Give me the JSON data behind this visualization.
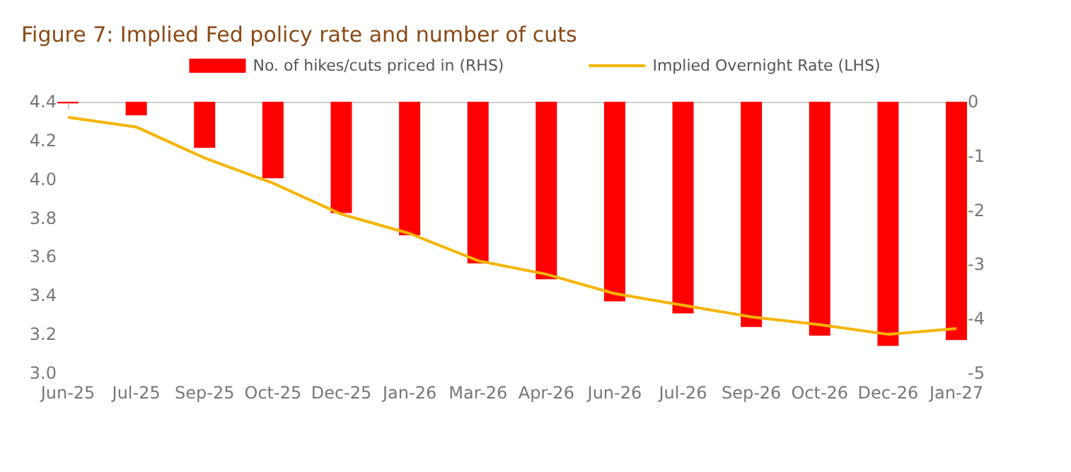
{
  "chart_data": {
    "type": "bar",
    "title": "Figure 7: Implied Fed policy rate and number of cuts",
    "categories": [
      "Jun-25",
      "Jul-25",
      "Sep-25",
      "Oct-25",
      "Dec-25",
      "Jan-26",
      "Mar-26",
      "Apr-26",
      "Jun-26",
      "Jul-26",
      "Sep-26",
      "Oct-26",
      "Dec-26",
      "Jan-27"
    ],
    "series": [
      {
        "name": "No. of hikes/cuts priced in (RHS)",
        "axis": "y2",
        "color": "#ff0000",
        "values": [
          -0.03,
          -0.25,
          -0.85,
          -1.41,
          -2.05,
          -2.46,
          -2.98,
          -3.27,
          -3.68,
          -3.9,
          -4.15,
          -4.31,
          -4.5,
          -4.39
        ]
      },
      {
        "name": "Implied Overnight Rate (LHS)",
        "type": "line",
        "color": "#f5b400",
        "marker": "none",
        "values": [
          4.32,
          4.27,
          4.11,
          3.98,
          3.82,
          3.72,
          3.58,
          3.51,
          3.41,
          3.35,
          3.29,
          3.25,
          3.2,
          3.23
        ]
      }
    ],
    "ylim": [
      3.0,
      4.4
    ],
    "yticks": [
      {
        "value": 3,
        "label": "3.0"
      },
      3.2,
      3.4,
      3.6,
      3.8,
      {
        "value": 4,
        "label": "4.0"
      },
      4.2,
      4.4
    ],
    "y2lim": [
      -5,
      0
    ],
    "y2ticks": [
      -5,
      -4,
      -3,
      -2,
      -1,
      0
    ],
    "grid": false,
    "legend": "top"
  }
}
